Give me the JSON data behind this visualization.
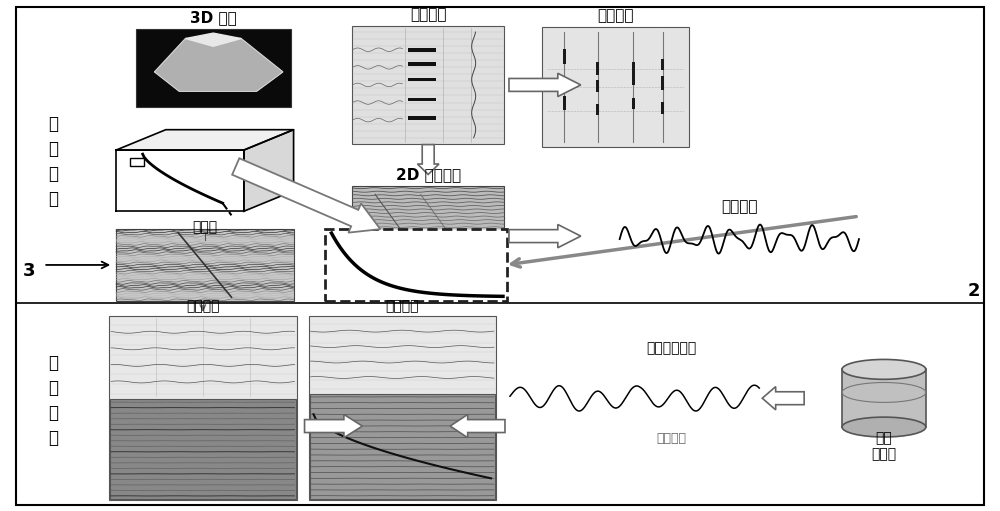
{
  "bg_color": "#ffffff",
  "labels": {
    "3d_structure": "3D 构造",
    "neighbor_wells": "邻井曲线",
    "stratum_compare": "地层对比",
    "seismic_body": "地震体",
    "guide_section_2d": "2D 导向剑面",
    "forward_model": "正演模型",
    "pre_drill_model": "钓\n前\n模\n型",
    "realtime_model": "实\n时\n模\n型",
    "seismic_guide": "地震导向",
    "geo_guide": "地质导向",
    "horizontal_compare": "水平曲线对比",
    "realtime_curve": "实时曲线",
    "well_db": "井场\n数据库",
    "label_3": "3",
    "label_2": "2"
  }
}
